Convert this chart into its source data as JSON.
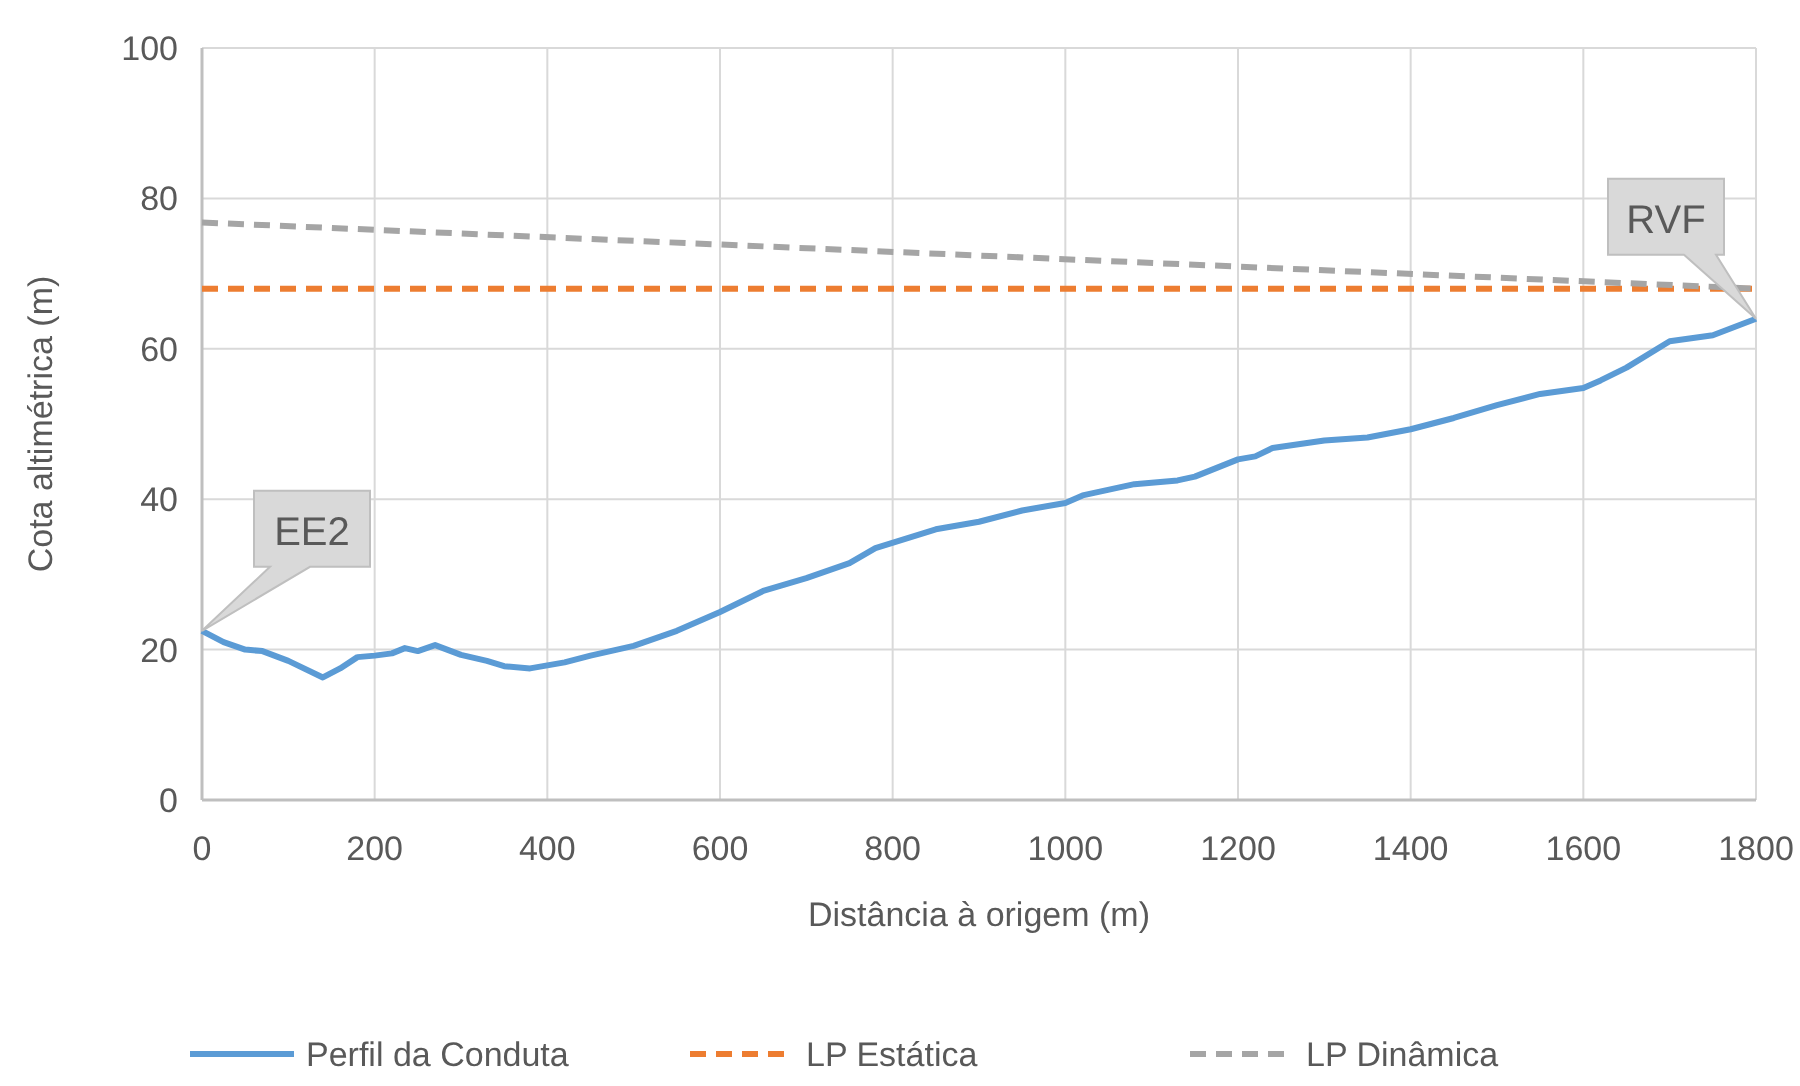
{
  "chart_data": {
    "type": "line",
    "xlabel": "Distância à origem (m)",
    "ylabel": "Cota altimétrica (m)",
    "xlim": [
      0,
      1800
    ],
    "xticks": [
      0,
      200,
      400,
      600,
      800,
      1000,
      1200,
      1400,
      1600,
      1800
    ],
    "ylim": [
      0,
      100
    ],
    "yticks": [
      0,
      20,
      40,
      60,
      80,
      100
    ],
    "grid": true,
    "legend": "bottom",
    "series": [
      {
        "name": "Perfil da Conduta",
        "color": "#5b9bd5",
        "line_style": "solid",
        "x": [
          0,
          25,
          50,
          70,
          100,
          140,
          160,
          180,
          200,
          220,
          235,
          250,
          270,
          300,
          330,
          350,
          380,
          420,
          450,
          500,
          550,
          600,
          650,
          700,
          750,
          780,
          850,
          900,
          950,
          1000,
          1020,
          1080,
          1130,
          1150,
          1200,
          1220,
          1240,
          1300,
          1350,
          1400,
          1450,
          1500,
          1550,
          1600,
          1620,
          1650,
          1700,
          1750,
          1800
        ],
        "values": [
          22.5,
          21,
          20,
          19.8,
          18.5,
          16.3,
          17.5,
          19,
          19.2,
          19.5,
          20.2,
          19.8,
          20.6,
          19.3,
          18.5,
          17.8,
          17.5,
          18.3,
          19.2,
          20.5,
          22.5,
          25,
          27.8,
          29.5,
          31.5,
          33.5,
          36,
          37,
          38.5,
          39.5,
          40.5,
          42,
          42.5,
          43,
          45.3,
          45.7,
          46.8,
          47.8,
          48.2,
          49.3,
          50.8,
          52.5,
          54,
          54.8,
          55.8,
          57.5,
          61,
          61.8,
          64
        ]
      },
      {
        "name": "LP Estática",
        "color": "#ed7d31",
        "line_style": "dashed",
        "x": [
          0,
          1800
        ],
        "values": [
          68,
          68
        ]
      },
      {
        "name": "LP Dinâmica",
        "color": "#a5a5a5",
        "line_style": "dashed",
        "x": [
          0,
          1800
        ],
        "values": [
          76.8,
          68
        ]
      }
    ],
    "annotations": [
      {
        "text": "EE2",
        "x": 0,
        "y": 22.5
      },
      {
        "text": "RVF",
        "x": 1800,
        "y": 64
      }
    ]
  }
}
